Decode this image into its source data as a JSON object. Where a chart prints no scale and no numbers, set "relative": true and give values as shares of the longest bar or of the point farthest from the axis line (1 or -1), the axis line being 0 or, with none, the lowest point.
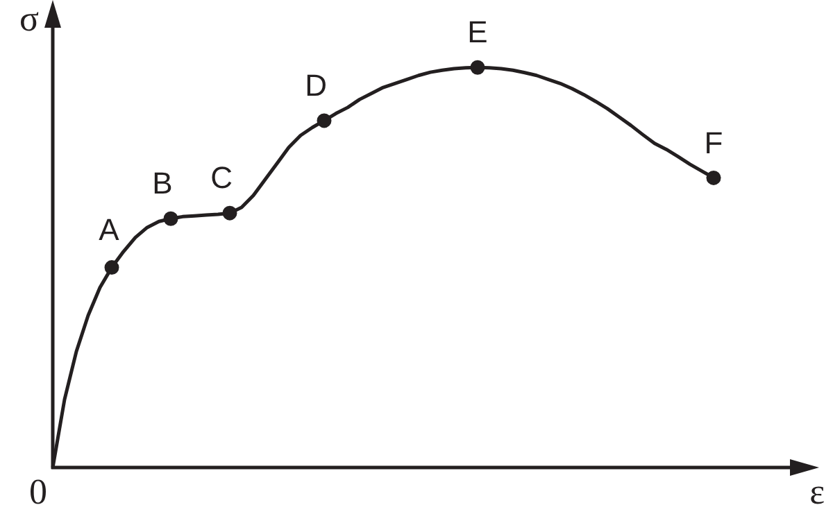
{
  "chart_data": {
    "type": "line",
    "relative": true,
    "xlabel": "ε",
    "ylabel": "σ",
    "line_style": "solid",
    "annotations": [
      "0",
      {
        "text": "A",
        "y": 0.5
      },
      {
        "text": "B",
        "y": 0.622
      },
      {
        "text": "C",
        "y": 0.636
      },
      {
        "text": "D",
        "y": 0.867
      },
      {
        "text": "E",
        "y": 1
      },
      {
        "text": "F",
        "y": 0.724
      }
    ],
    "categories": [
      null,
      null,
      null,
      null,
      null,
      null,
      null,
      null,
      null,
      null,
      null,
      null,
      null,
      null,
      null,
      null,
      null,
      null,
      null,
      null,
      null,
      null,
      null,
      null,
      null,
      null,
      null,
      null,
      null,
      null,
      null,
      null,
      null,
      null,
      null,
      null,
      null,
      null,
      null,
      null,
      null,
      null,
      null,
      null,
      null,
      null,
      null,
      null,
      null,
      null,
      null,
      null,
      null,
      null,
      null,
      null,
      null
    ],
    "series": [
      {
        "color": "#231f20",
        "values": [
          0,
          0.17,
          0.29,
          0.38,
          0.45,
          0.5,
          0.54,
          0.575,
          0.6,
          0.615,
          0.622,
          0.627,
          0.629,
          0.631,
          0.633,
          0.636,
          0.65,
          0.68,
          0.72,
          0.76,
          0.8,
          0.83,
          0.85,
          0.867,
          0.885,
          0.9,
          0.92,
          0.935,
          0.95,
          0.96,
          0.97,
          0.98,
          0.988,
          0.993,
          0.997,
          0.999,
          1,
          0.999,
          0.997,
          0.993,
          0.987,
          0.98,
          0.97,
          0.96,
          0.947,
          0.932,
          0.915,
          0.897,
          0.876,
          0.855,
          0.832,
          0.81,
          0.795,
          0.777,
          0.758,
          0.741,
          0.724
        ]
      }
    ]
  }
}
